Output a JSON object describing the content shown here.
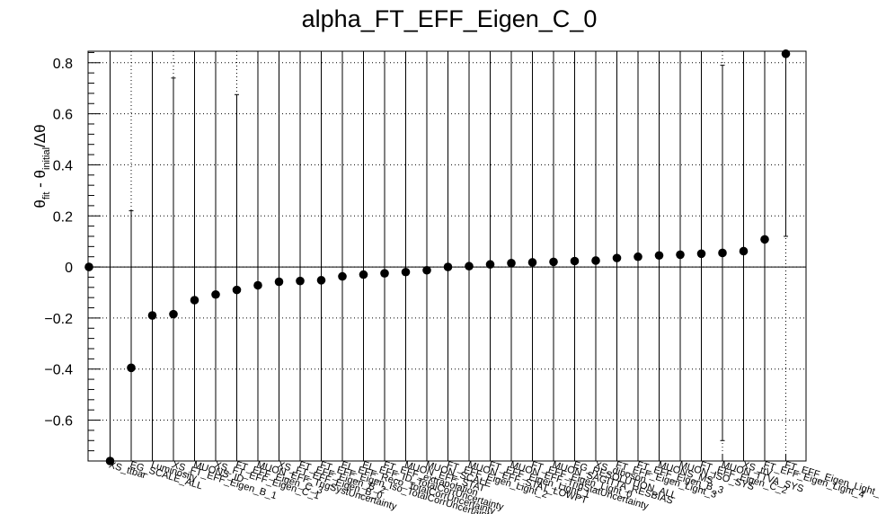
{
  "chart_data": {
    "type": "scatter",
    "title": "alpha_FT_EFF_Eigen_C_0",
    "ylabel": {
      "theta": "θ",
      "sub_fit": "fit",
      "minus": " - ",
      "sub_initial": "initial",
      "div": "/Δθ"
    },
    "ylim": [
      -0.76,
      0.845
    ],
    "yticks": [
      -0.6,
      -0.4,
      -0.2,
      0,
      0.2,
      0.4,
      0.6,
      0.8
    ],
    "ytick_labels": [
      "−0.6",
      "−0.4",
      "−0.2",
      "0",
      "0.2",
      "0.4",
      "0.6",
      "0.8"
    ],
    "grid": true,
    "points": [
      {
        "label": "",
        "value": 0.0,
        "error": null
      },
      {
        "label": "XS_ttbar",
        "value": -0.76,
        "error": null
      },
      {
        "label": "EG_SCALE_ALL",
        "value": -0.395,
        "error": 0.615
      },
      {
        "label": "Luminosity",
        "value": -0.19,
        "error": null
      },
      {
        "label": "XS_FT_EFF_Eigen_B_1",
        "value": -0.185,
        "error": 0.925
      },
      {
        "label": "MUONS_ID",
        "value": -0.13,
        "error": null
      },
      {
        "label": "XS_FT_EFF_Eigen_C_1",
        "value": -0.108,
        "error": null
      },
      {
        "label": "FT_EFF_Eigen_C_3",
        "value": -0.09,
        "error": 0.765
      },
      {
        "label": "MUON_EFF_TrigSystUncertainty",
        "value": -0.072,
        "error": null
      },
      {
        "label": "XS_FT_EFF_Eigen_B_0",
        "value": -0.058,
        "error": null
      },
      {
        "label": "FT_EFF_Eigen_B_2",
        "value": -0.055,
        "error": null
      },
      {
        "label": "FT_EFF_Eigen_Iso_TotalCorrUncertainty",
        "value": -0.052,
        "error": null
      },
      {
        "label": "EL_EFF_Reco_TotalCorrUncertainty",
        "value": -0.037,
        "error": null
      },
      {
        "label": "EL_EFF_ID_TotalCorrUncertainty",
        "value": -0.03,
        "error": null
      },
      {
        "label": "FT_EFF_extrapolation",
        "value": -0.025,
        "error": null
      },
      {
        "label": "MUON_EFF_STAT",
        "value": -0.02,
        "error": null
      },
      {
        "label": "MUON_SCALE",
        "value": -0.013,
        "error": null
      },
      {
        "label": "FT_EFF_Eigen_Light_2",
        "value": 0.0,
        "error": null
      },
      {
        "label": "MUON_EFF_STAT_LOWPT",
        "value": 0.003,
        "error": null
      },
      {
        "label": "FT_EFF_Eigen_Light_1",
        "value": 0.01,
        "error": null
      },
      {
        "label": "MUON_EFF_TrigStatUncertainty",
        "value": 0.015,
        "error": null
      },
      {
        "label": "FT_EFF_Eigen_Light_0",
        "value": 0.018,
        "error": null
      },
      {
        "label": "MUON_SAGITTA_RESBIAS",
        "value": 0.02,
        "error": null
      },
      {
        "label": "EG_RESOLUTION_ALL",
        "value": 0.023,
        "error": null
      },
      {
        "label": "XS_diboson",
        "value": 0.025,
        "error": null
      },
      {
        "label": "FT_EFF_Eigen_Light_3",
        "value": 0.035,
        "error": null
      },
      {
        "label": "FT_EFF_Eigen_B_3",
        "value": 0.04,
        "error": null
      },
      {
        "label": "MUONS_MS",
        "value": 0.045,
        "error": null
      },
      {
        "label": "MUON_ISO_SYS",
        "value": 0.048,
        "error": null
      },
      {
        "label": "FT_EFF_Eigen_C_2",
        "value": 0.052,
        "error": null
      },
      {
        "label": "MUON_TTVA_SYS",
        "value": 0.055,
        "error": 0.735
      },
      {
        "label": "XS_ttV",
        "value": 0.062,
        "error": null
      },
      {
        "label": "FT_EFF_Eigen_Light_4",
        "value": 0.108,
        "error": null
      },
      {
        "label": "FT_EFF_Eigen_Light_",
        "value": 0.835,
        "error": 0.715
      }
    ]
  }
}
